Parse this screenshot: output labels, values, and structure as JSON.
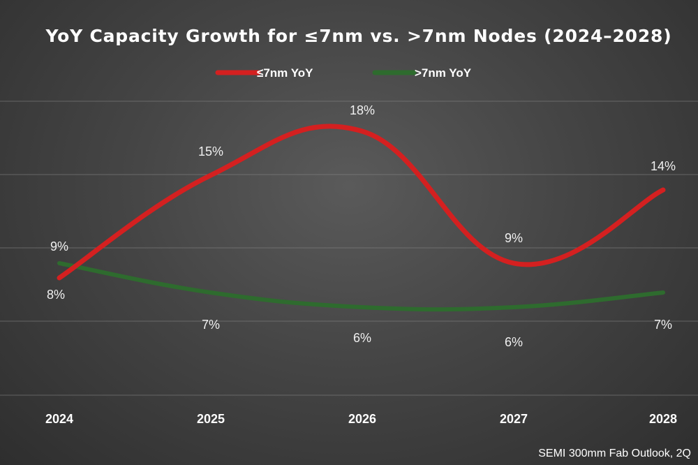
{
  "chart_data": {
    "type": "line",
    "title": "YoY Capacity Growth for ≤7nm vs. >7nm Nodes (2024–2028)",
    "categories": [
      "2024",
      "2025",
      "2026",
      "2027",
      "2028"
    ],
    "series": [
      {
        "name": "≤7nm YoY",
        "color": "#d42020",
        "values": [
          8,
          15,
          18,
          9,
          14
        ],
        "labels": [
          "8%",
          "15%",
          "18%",
          "9%",
          "14%"
        ]
      },
      {
        "name": ">7nm YoY",
        "color": "#2e6b2e",
        "values": [
          9,
          7,
          6,
          6,
          7
        ],
        "labels": [
          "9%",
          "7%",
          "6%",
          "6%",
          "7%"
        ]
      }
    ],
    "grid": true,
    "legend_position": "top"
  },
  "source_note": "SEMI 300mm Fab Outlook, 2Q"
}
